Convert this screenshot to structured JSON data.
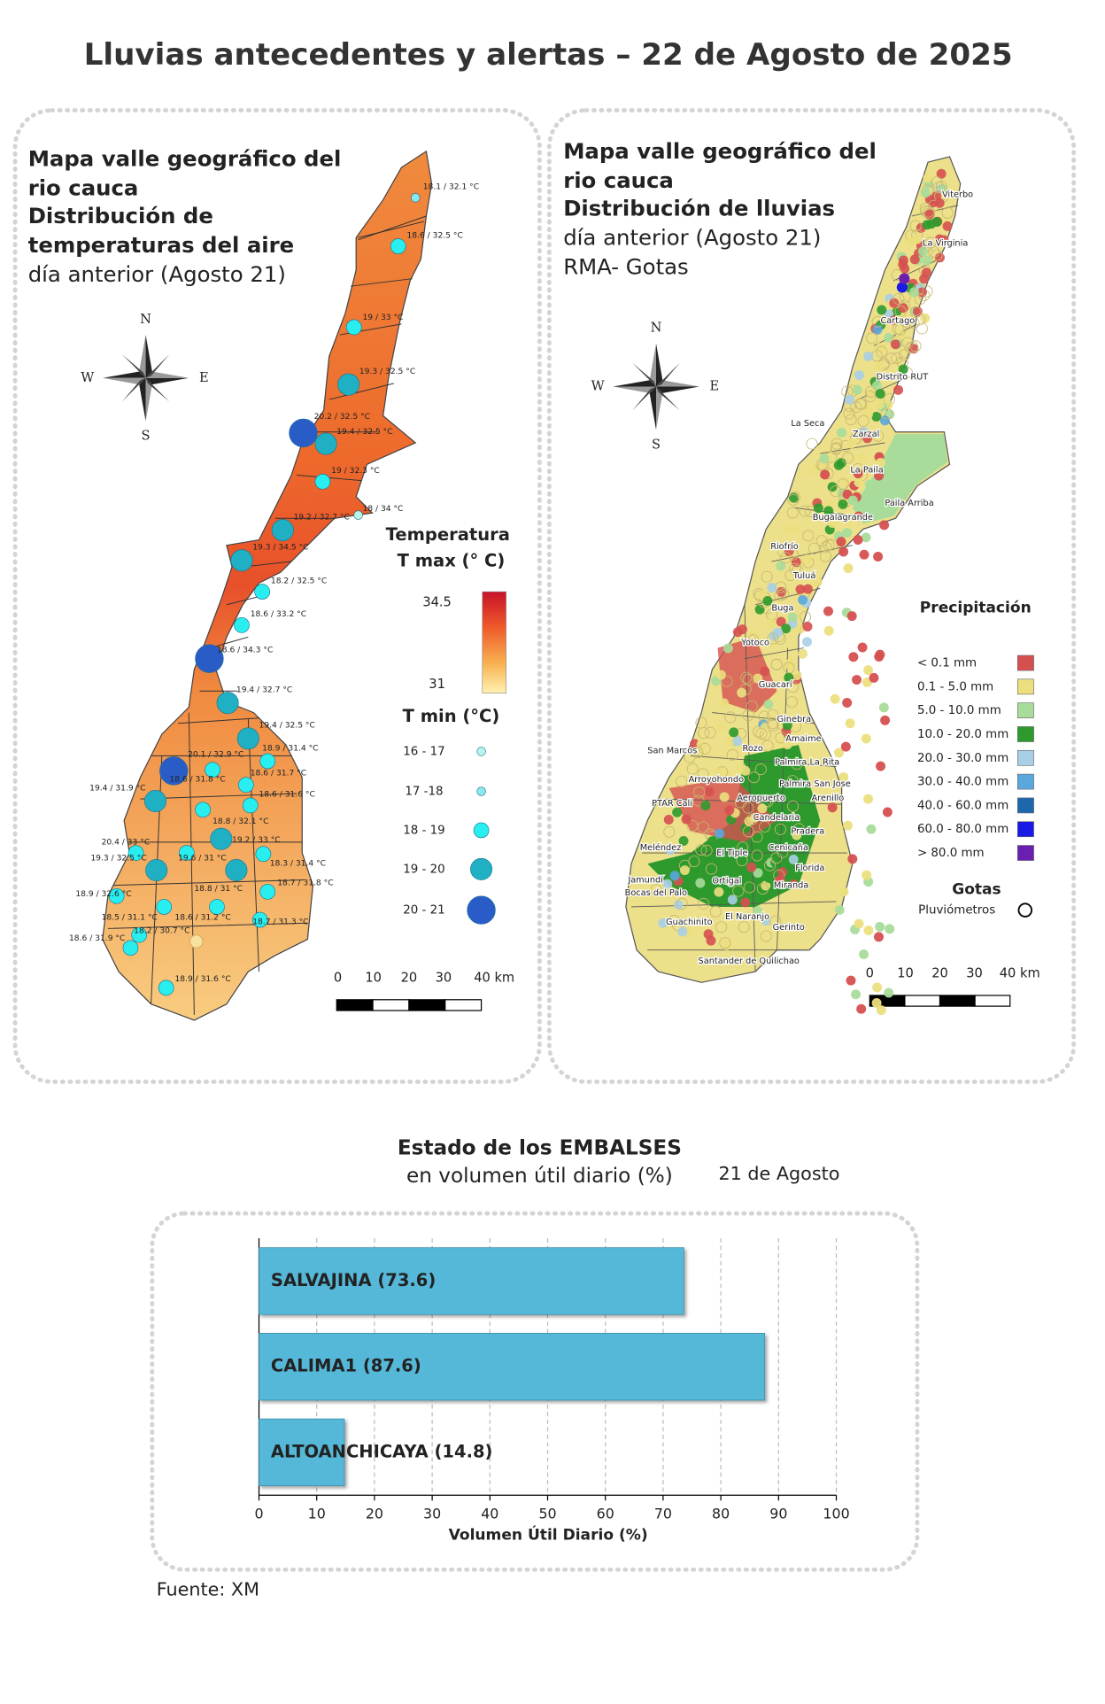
{
  "header": {
    "title": "Lluvias antecedentes y alertas – 22 de Agosto de 2025"
  },
  "temp_map": {
    "title_lines": [
      "Mapa valle geográfico del",
      "rio cauca",
      "Distribución de",
      "temperaturas del aire",
      "día anterior (Agosto 21)"
    ],
    "compass": [
      "N",
      "S",
      "W",
      "E"
    ],
    "legend": {
      "title": "Temperatura",
      "tmax_label": "T max (° C)",
      "tmax_top": "34.5",
      "tmax_bottom": "31",
      "tmin_label": "T min (°C)",
      "tmin_classes": [
        "16 - 17",
        "17 -18",
        "18 - 19",
        "19 - 20",
        "20 - 21"
      ]
    },
    "scale": [
      "0",
      "10",
      "20",
      "30",
      "40 km"
    ],
    "stations": [
      "18.1 / 32.1 °C",
      "18.6 / 32.5 °C",
      "19 / 33 °C",
      "19.3 / 32.5 °C",
      "20.2 / 32.5 °C",
      "19.4 / 32.5 °C",
      "19 / 32.3 °C",
      "18 / 34 °C",
      "19.2 / 32.7 °C",
      "19.3 / 34.5 °C",
      "18.2 / 32.5 °C",
      "18.6 / 33.2 °C",
      "18.6 / 34.3 °C",
      "19.4 / 32.7 °C",
      "19.4 / 32.5 °C",
      "18.9 / 31.4 °C",
      "20.1 / 32.9 °C",
      "18.6 / 31.8 °C",
      "18.6 / 31.7 °C",
      "19.4 / 31.9 °C",
      "18.6 / 31.6 °C",
      "18.8 / 32.1 °C",
      "19.2 / 33 °C",
      "20.4 / 33 °C",
      "19.6 / 31 °C",
      "18.3 / 31.4 °C",
      "19.3 / 32.5 °C",
      "18.8 / 31 °C",
      "18.7 / 31.8 °C",
      "18.9 / 32.6 °C",
      "18.5 / 31.1 °C",
      "18.6 / 31.2 °C",
      "18.7 / 31.3 °C",
      "18.2 / 30.7 °C",
      "18.6 / 31.9 °C",
      "18.9 / 31.6 °C"
    ]
  },
  "rain_map": {
    "title_lines": [
      "Mapa valle geográfico del",
      "rio cauca",
      "Distribución de lluvias",
      "día anterior (Agosto 21)",
      "RMA- Gotas"
    ],
    "compass": [
      "N",
      "S",
      "W",
      "E"
    ],
    "legend": {
      "title": "Precipitación",
      "classes": [
        {
          "label": "< 0.1 mm",
          "color": "#d65050"
        },
        {
          "label": "0.1 - 5.0 mm",
          "color": "#ebdf7e"
        },
        {
          "label": "5.0 - 10.0 mm",
          "color": "#a9dc9a"
        },
        {
          "label": "10.0 - 20.0 mm",
          "color": "#2e9a2e"
        },
        {
          "label": "20.0 - 30.0 mm",
          "color": "#a9cfe6"
        },
        {
          "label": "30.0 - 40.0 mm",
          "color": "#5aa7de"
        },
        {
          "label": "40.0 - 60.0 mm",
          "color": "#1f67ad"
        },
        {
          "label": "60.0 - 80.0 mm",
          "color": "#1a1ae6"
        },
        {
          "label": "> 80.0 mm",
          "color": "#6a1fb0"
        }
      ],
      "drops_title": "Gotas",
      "gauges": "Pluviómetros"
    },
    "scale": [
      "0",
      "10",
      "20",
      "30",
      "40 km"
    ],
    "towns": [
      "Viterbo",
      "La Virginia",
      "Cartago",
      "Distrito RUT",
      "La Seca",
      "Zarzal",
      "La Paila",
      "Paila Arriba",
      "Bugalagrande",
      "Riofrío",
      "Tuluá",
      "Buga",
      "Yotoco",
      "Guacarí",
      "Ginebra",
      "San Marcos",
      "Rozo",
      "Amaime",
      "Palmira La Rita",
      "Arroyohondo",
      "Palmira San Jose",
      "PTAR Cali",
      "Aeropuerto",
      "Arenillo",
      "Candelaria",
      "Cenicaña",
      "Pradera",
      "Meléndez",
      "El Tiple",
      "Florida",
      "Jamundí",
      "Bocas del Palo",
      "Ortigal",
      "Miranda",
      "El Naranjo",
      "Guachinito",
      "Gerinto",
      "Santander de Quilichao"
    ]
  },
  "chart_data": {
    "type": "bar",
    "orientation": "horizontal",
    "title": "Estado de los EMBALSES",
    "subtitle": "en volumen útil diario (%)",
    "date": "21 de Agosto",
    "values": [
      73.6,
      87.6,
      14.8
    ],
    "value_labels": [
      "SALVAJINA (73.6)",
      "CALIMA1 (87.6)",
      "ALTOANCHICAYA (14.8)"
    ],
    "color": "#55b8d8",
    "xlim": [
      0,
      100
    ],
    "xticks": [
      0,
      10,
      20,
      30,
      40,
      50,
      60,
      70,
      80,
      90,
      100
    ],
    "xlabel": "Volumen Útil Diario (%)",
    "grid": true
  },
  "source": "Fuente: XM"
}
